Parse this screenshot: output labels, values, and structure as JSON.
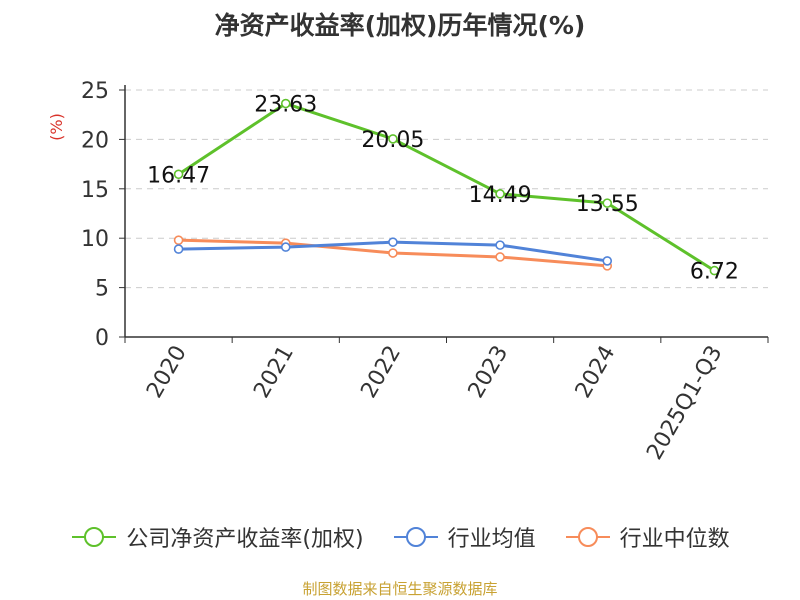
{
  "title": "净资产收益率(加权)历年情况(%)",
  "source": "制图数据来自恒生聚源数据库",
  "chart_data": {
    "type": "line",
    "categories": [
      "2020",
      "2021",
      "2022",
      "2023",
      "2024",
      "2025Q1-Q3"
    ],
    "ylabel": "(%)",
    "ylim": [
      0,
      25
    ],
    "yticks": [
      0,
      5,
      10,
      15,
      20,
      25
    ],
    "grid": true,
    "legend_position": "bottom",
    "series": [
      {
        "name": "公司净资产收益率(加权)",
        "color": "#5ec12b",
        "values": [
          16.47,
          23.63,
          20.05,
          14.49,
          13.55,
          6.72
        ],
        "labels": [
          "16.47",
          "23.63",
          "20.05",
          "14.49",
          "13.55",
          "6.72"
        ]
      },
      {
        "name": "行业均值",
        "color": "#5183d8",
        "values": [
          8.9,
          9.1,
          9.6,
          9.3,
          7.7,
          null
        ]
      },
      {
        "name": "行业中位数",
        "color": "#f78c5a",
        "values": [
          9.8,
          9.5,
          8.5,
          8.1,
          7.2,
          null
        ]
      }
    ]
  }
}
